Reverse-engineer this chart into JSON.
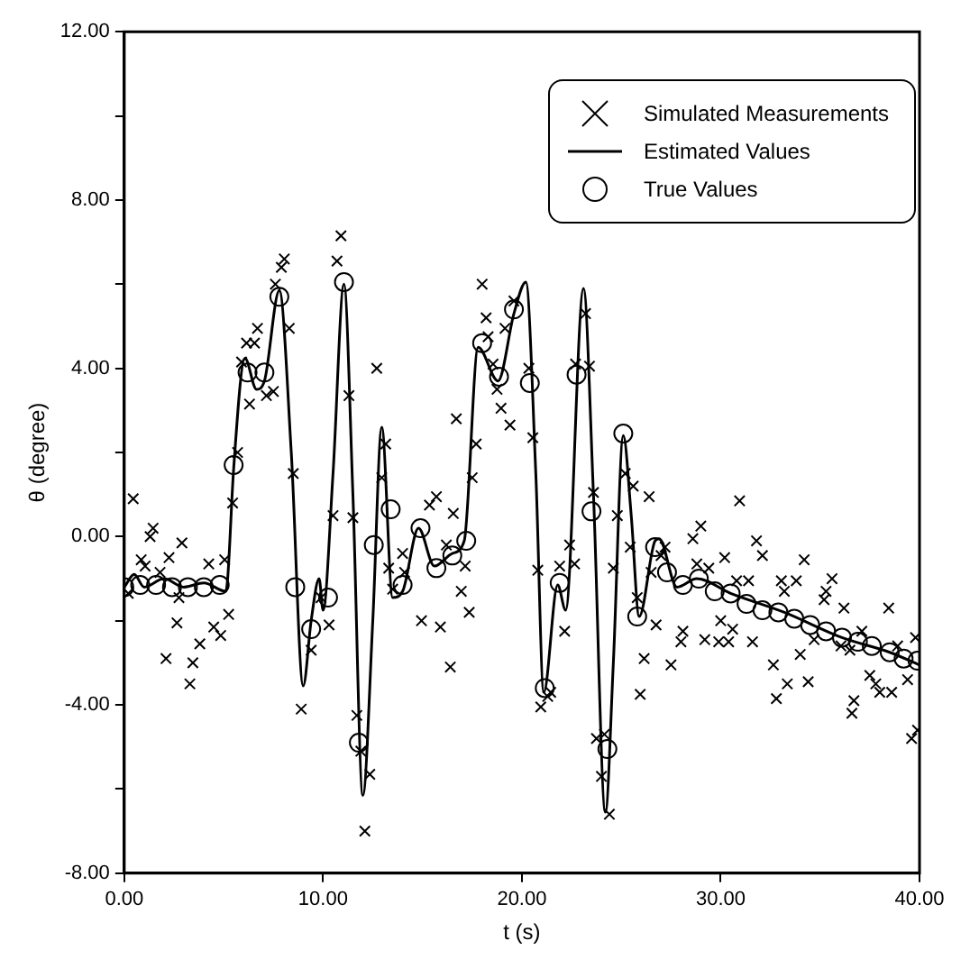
{
  "chart_data": {
    "type": "scatter",
    "xlabel": "t (s)",
    "ylabel": "θ (degree)",
    "xlim": [
      0,
      40
    ],
    "ylim": [
      -8,
      12
    ],
    "xticks": [
      {
        "value": 0,
        "label": "0.00"
      },
      {
        "value": 10,
        "label": "10.00"
      },
      {
        "value": 20,
        "label": "20.00"
      },
      {
        "value": 30,
        "label": "30.00"
      },
      {
        "value": 40,
        "label": "40.00"
      }
    ],
    "yticks": [
      {
        "value": -8,
        "label": "-8.00"
      },
      {
        "value": -6,
        "label": null
      },
      {
        "value": -4,
        "label": "-4.00"
      },
      {
        "value": -2,
        "label": null
      },
      {
        "value": 0,
        "label": "0.00"
      },
      {
        "value": 2,
        "label": null
      },
      {
        "value": 4,
        "label": "4.00"
      },
      {
        "value": 6,
        "label": null
      },
      {
        "value": 8,
        "label": "8.00"
      },
      {
        "value": 10,
        "label": null
      },
      {
        "value": 12,
        "label": "12.00"
      }
    ],
    "grid": false,
    "legend": "top right",
    "series": [
      {
        "name": "Simulated Measurements",
        "type": "scatter",
        "marker": "cross",
        "color": "#000000",
        "x": [
          0.2,
          0.45,
          0.85,
          1.05,
          1.3,
          1.45,
          1.8,
          2.1,
          2.25,
          2.65,
          2.75,
          2.9,
          3.3,
          3.45,
          3.8,
          4.25,
          4.5,
          4.85,
          5.05,
          5.25,
          5.45,
          5.7,
          5.9,
          6.15,
          6.3,
          6.55,
          6.7,
          7.15,
          7.5,
          7.6,
          7.9,
          8.05,
          8.3,
          8.5,
          8.9,
          9.4,
          9.9,
          10.3,
          10.5,
          10.7,
          10.9,
          11.3,
          11.5,
          11.7,
          11.9,
          12.1,
          12.35,
          12.7,
          12.95,
          13.15,
          13.3,
          13.5,
          14.0,
          14.1,
          14.95,
          15.35,
          15.7,
          15.9,
          16.2,
          16.4,
          16.55,
          16.7,
          16.95,
          17.15,
          17.35,
          17.5,
          17.7,
          18.0,
          18.2,
          18.3,
          18.55,
          18.75,
          18.95,
          19.15,
          19.4,
          19.6,
          20.35,
          20.55,
          20.8,
          20.95,
          21.3,
          21.45,
          21.9,
          22.15,
          22.4,
          22.65,
          22.7,
          23.2,
          23.4,
          23.6,
          23.75,
          24.0,
          24.15,
          24.4,
          24.6,
          24.8,
          25.2,
          25.45,
          25.6,
          25.8,
          25.95,
          26.15,
          26.4,
          26.5,
          26.75,
          27.0,
          27.2,
          27.5,
          28.0,
          28.1,
          28.6,
          28.8,
          29.0,
          29.2,
          29.4,
          29.9,
          30.0,
          30.2,
          30.4,
          30.6,
          30.8,
          30.95,
          31.4,
          31.6,
          31.8,
          32.1,
          32.65,
          32.8,
          33.05,
          33.2,
          33.35,
          33.8,
          34.0,
          34.2,
          34.4,
          34.7,
          35.2,
          35.3,
          35.6,
          36.05,
          36.2,
          36.5,
          36.6,
          36.7,
          37.1,
          37.5,
          37.8,
          38.0,
          38.45,
          38.6,
          38.9,
          39.4,
          39.6,
          39.8,
          39.9
        ],
        "values": [
          -1.35,
          0.9,
          -0.55,
          -0.7,
          0.0,
          0.2,
          -0.85,
          -2.9,
          -0.5,
          -2.05,
          -1.45,
          -0.15,
          -3.5,
          -3.0,
          -2.55,
          -0.65,
          -2.15,
          -2.35,
          -0.55,
          -1.85,
          0.8,
          2.0,
          4.15,
          4.6,
          3.15,
          4.6,
          4.95,
          3.35,
          3.45,
          6.0,
          6.4,
          6.6,
          4.95,
          1.5,
          -4.1,
          -2.7,
          -1.45,
          -2.1,
          0.5,
          6.55,
          7.15,
          3.35,
          0.45,
          -4.25,
          -5.1,
          -7.0,
          -5.65,
          4.0,
          1.4,
          2.2,
          -0.75,
          -1.25,
          -0.4,
          -0.85,
          -2.0,
          0.75,
          0.95,
          -2.15,
          -0.2,
          -3.1,
          0.55,
          2.8,
          -1.3,
          -0.7,
          -1.8,
          1.4,
          2.2,
          6.0,
          5.2,
          4.75,
          4.1,
          3.5,
          3.05,
          4.95,
          2.65,
          5.6,
          4.0,
          2.35,
          -0.8,
          -4.05,
          -3.8,
          -3.7,
          -0.7,
          -2.25,
          -0.2,
          -0.65,
          4.1,
          5.3,
          4.05,
          1.05,
          -4.8,
          -5.7,
          -4.7,
          -6.6,
          -0.75,
          0.5,
          1.5,
          -0.25,
          1.2,
          -1.45,
          -3.75,
          -2.9,
          0.95,
          -0.85,
          -2.1,
          -0.45,
          -0.25,
          -3.05,
          -2.5,
          -2.25,
          -0.05,
          -0.65,
          0.25,
          -2.45,
          -0.75,
          -2.5,
          -2.0,
          -0.5,
          -2.5,
          -2.2,
          -1.05,
          0.85,
          -1.05,
          -2.5,
          -0.1,
          -0.45,
          -3.05,
          -3.85,
          -1.05,
          -1.3,
          -3.5,
          -1.05,
          -2.8,
          -0.55,
          -3.45,
          -2.45,
          -1.5,
          -1.3,
          -1.0,
          -2.6,
          -1.7,
          -2.7,
          -4.2,
          -3.9,
          -2.25,
          -3.3,
          -3.5,
          -3.7,
          -1.7,
          -3.7,
          -2.6,
          -3.4,
          -4.8,
          -2.4,
          -4.6
        ]
      },
      {
        "name": "Estimated Values",
        "type": "line",
        "marker": "none",
        "line_style": "solid",
        "color": "#000000",
        "x": [
          0,
          0.5,
          1,
          2,
          3,
          4,
          5.1,
          5.2,
          5.5,
          6.07,
          6.65,
          7.05,
          7.8,
          8.4,
          9.0,
          9.4,
          9.8,
          10.0,
          10.5,
          11.05,
          11.5,
          12.0,
          12.5,
          12.95,
          13.5,
          14.0,
          14.8,
          15.6,
          16.5,
          17.1,
          17.8,
          18.8,
          19.6,
          20.2,
          20.7,
          21.1,
          21.8,
          22.2,
          23.1,
          23.6,
          24.2,
          24.6,
          25.1,
          25.5,
          25.9,
          26.7,
          26.9,
          27.8,
          28.8,
          30.5,
          33.2,
          36.1,
          38.5,
          40
        ],
        "values": [
          -1.2,
          -0.9,
          -1.2,
          -1.0,
          -1.2,
          -1.1,
          -1.3,
          -1.0,
          1.6,
          4.24,
          3.5,
          3.7,
          5.85,
          2.0,
          -3.55,
          -2.0,
          -1.0,
          -1.75,
          1.5,
          6.0,
          1.0,
          -6.15,
          -2.0,
          2.6,
          -1.45,
          -1.3,
          0.2,
          -0.7,
          -0.4,
          -0.1,
          4.5,
          3.7,
          5.3,
          6.05,
          1.5,
          -3.7,
          -1.15,
          -1.75,
          5.9,
          1.0,
          -6.55,
          -3.0,
          2.4,
          0.5,
          -1.9,
          -0.1,
          -0.05,
          -1.2,
          -1.0,
          -1.35,
          -1.8,
          -2.4,
          -2.75,
          -3.05
        ]
      },
      {
        "name": "True Values",
        "type": "scatter",
        "marker": "circle",
        "color": "#000000",
        "x": [
          0,
          0.8,
          1.6,
          2.4,
          3.2,
          4.0,
          4.8,
          5.5,
          6.2,
          7.05,
          7.8,
          8.6,
          9.4,
          10.25,
          11.05,
          11.8,
          12.55,
          13.4,
          14.0,
          14.9,
          15.7,
          16.5,
          17.2,
          18.0,
          18.85,
          19.6,
          20.4,
          21.15,
          21.9,
          22.75,
          23.5,
          24.3,
          25.1,
          25.8,
          26.7,
          27.3,
          28.1,
          28.9,
          29.7,
          30.5,
          31.3,
          32.1,
          32.9,
          33.7,
          34.5,
          35.3,
          36.1,
          36.9,
          37.6,
          38.5,
          39.2,
          39.9
        ],
        "values": [
          -1.2,
          -1.15,
          -1.15,
          -1.2,
          -1.2,
          -1.2,
          -1.15,
          1.7,
          3.9,
          3.9,
          5.7,
          -1.2,
          -2.2,
          -1.45,
          6.05,
          -4.9,
          -0.2,
          0.65,
          -1.15,
          0.2,
          -0.75,
          -0.45,
          -0.1,
          4.6,
          3.8,
          5.4,
          3.65,
          -3.6,
          -1.1,
          3.85,
          0.6,
          -5.05,
          2.45,
          -1.9,
          -0.25,
          -0.85,
          -1.15,
          -1.0,
          -1.3,
          -1.35,
          -1.6,
          -1.75,
          -1.8,
          -1.95,
          -2.1,
          -2.25,
          -2.4,
          -2.5,
          -2.6,
          -2.75,
          -2.9,
          -2.95
        ]
      }
    ]
  }
}
